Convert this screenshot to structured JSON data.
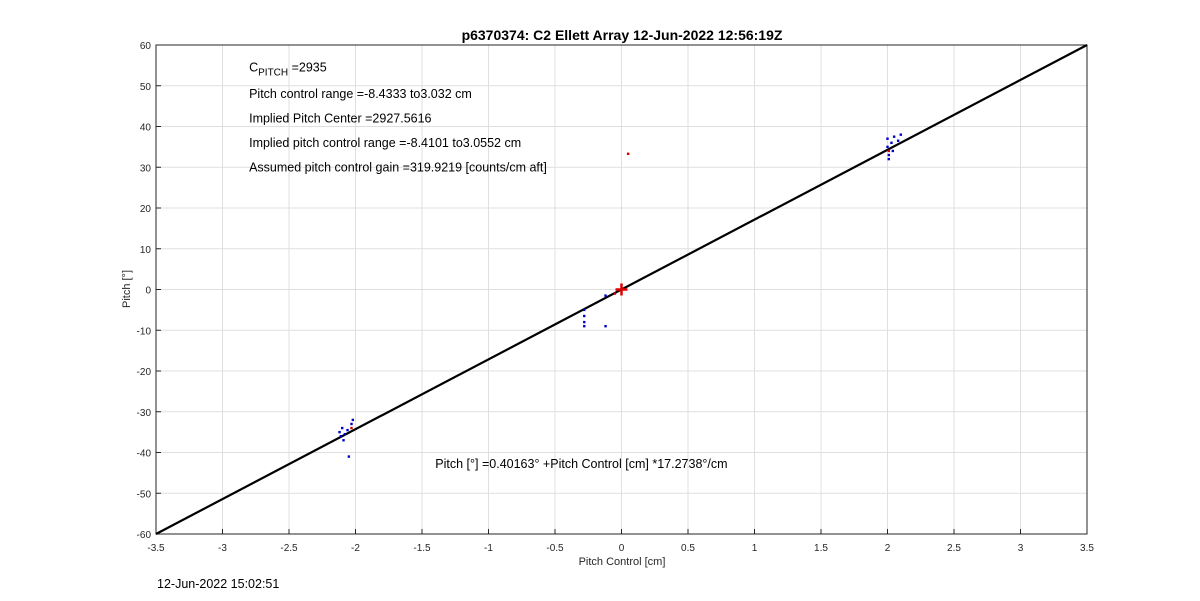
{
  "chart_data": {
    "type": "scatter",
    "title": "p6370374: C2 Ellett Array 12-Jun-2022 12:56:19Z",
    "xlabel": "Pitch Control [cm]",
    "ylabel": "Pitch [°]",
    "xlim": [
      -3.5,
      3.5
    ],
    "ylim": [
      -60,
      60
    ],
    "xticks": [
      -3.5,
      -3,
      -2.5,
      -2,
      -1.5,
      -1,
      -0.5,
      0,
      0.5,
      1,
      1.5,
      2,
      2.5,
      3,
      3.5
    ],
    "xtick_labels": [
      "-3.5",
      "-3",
      "-2.5",
      "-2",
      "-1.5",
      "-1",
      "-0.5",
      "0",
      "0.5",
      "1",
      "1.5",
      "2",
      "2.5",
      "3",
      "3.5"
    ],
    "yticks": [
      -60,
      -50,
      -40,
      -30,
      -20,
      -10,
      0,
      10,
      20,
      30,
      40,
      50,
      60
    ],
    "ytick_labels": [
      "-60",
      "-50",
      "-40",
      "-30",
      "-20",
      "-10",
      "0",
      "10",
      "20",
      "30",
      "40",
      "50",
      "60"
    ],
    "grid": true,
    "series": [
      {
        "kind": "scatter",
        "color": "#0000cc",
        "points": [
          {
            "x": -2.12,
            "y": -35
          },
          {
            "x": -2.11,
            "y": -36
          },
          {
            "x": -2.1,
            "y": -34
          },
          {
            "x": -2.09,
            "y": -37
          },
          {
            "x": -2.08,
            "y": -35.5
          },
          {
            "x": -2.06,
            "y": -34.5
          },
          {
            "x": -2.05,
            "y": -41
          },
          {
            "x": -2.03,
            "y": -33
          },
          {
            "x": -2.02,
            "y": -32
          },
          {
            "x": -0.28,
            "y": -5
          },
          {
            "x": -0.28,
            "y": -6.5
          },
          {
            "x": -0.28,
            "y": -8
          },
          {
            "x": -0.28,
            "y": -9
          },
          {
            "x": -0.12,
            "y": -9
          },
          {
            "x": -0.12,
            "y": -1.5
          },
          {
            "x": 2.0,
            "y": 37
          },
          {
            "x": 2.0,
            "y": 35
          },
          {
            "x": 2.01,
            "y": 33
          },
          {
            "x": 2.01,
            "y": 32
          },
          {
            "x": 2.03,
            "y": 36
          },
          {
            "x": 2.04,
            "y": 34
          },
          {
            "x": 2.05,
            "y": 37.5
          },
          {
            "x": 2.08,
            "y": 36.5
          },
          {
            "x": 2.1,
            "y": 38
          }
        ]
      },
      {
        "kind": "scatter",
        "color": "#cc0000",
        "points": [
          {
            "x": -2.03,
            "y": -34
          },
          {
            "x": -0.05,
            "y": -1
          },
          {
            "x": 0.05,
            "y": 33.3
          },
          {
            "x": 2.01,
            "y": 34
          }
        ]
      },
      {
        "kind": "marker",
        "marker": "plus",
        "color": "#dd0000",
        "points": [
          {
            "x": 0,
            "y": 0
          }
        ]
      },
      {
        "kind": "line",
        "color": "#000000",
        "points": [
          {
            "x": -3.5,
            "y": -60
          },
          {
            "x": 3.5,
            "y": 60
          }
        ]
      }
    ],
    "annotations": [
      {
        "kind": "cpitch",
        "text_main": "C",
        "text_sub": "PITCH",
        "text_tail": " =2935",
        "x": -2.8,
        "y": 53.5
      },
      {
        "text": "Pitch control range =-8.4333 to3.032 cm",
        "x": -2.8,
        "y": 47
      },
      {
        "text": "Implied Pitch Center =2927.5616",
        "x": -2.8,
        "y": 41
      },
      {
        "text": "Implied pitch control range =-8.4101 to3.0552 cm",
        "x": -2.8,
        "y": 35
      },
      {
        "text": "Assumed pitch control gain =319.9219 [counts/cm aft]",
        "x": -2.8,
        "y": 29
      },
      {
        "text": "Pitch [°] =0.40163° +Pitch Control [cm] *17.2738°/cm",
        "x": -1.4,
        "y": -43.8
      }
    ]
  },
  "footer": {
    "timestamp": "12-Jun-2022 15:02:51"
  }
}
